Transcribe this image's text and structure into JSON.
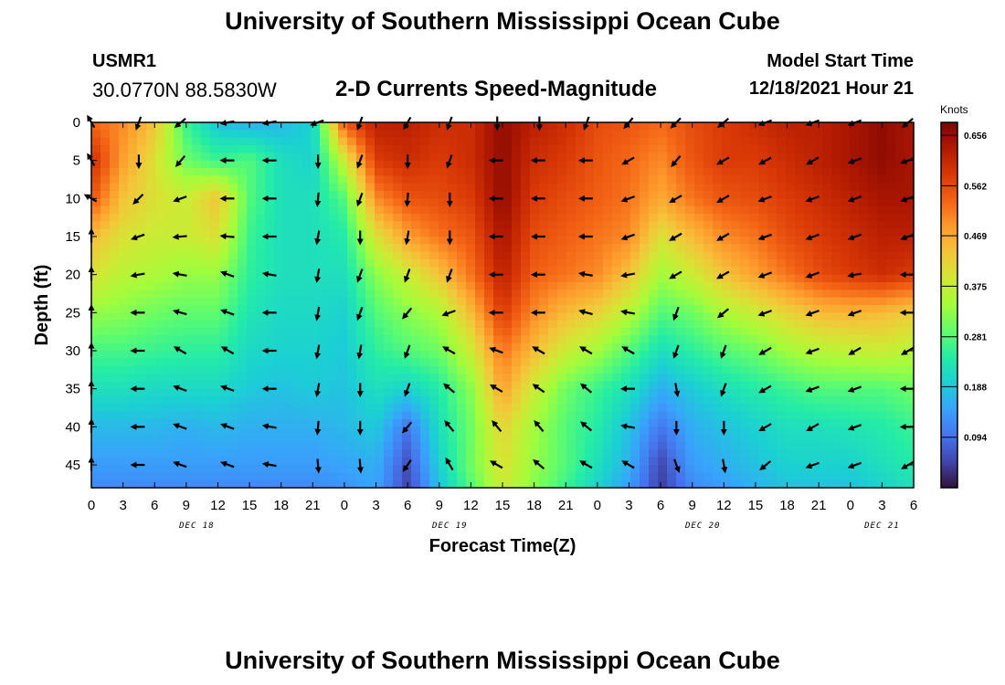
{
  "header": {
    "title": "University of Southern Mississippi Ocean Cube",
    "station_id": "USMR1",
    "station_coords": "30.0770N  88.5830W",
    "plot_title": "2-D Currents Speed-Magnitude",
    "model_start_label": "Model Start Time",
    "model_start_value": "12/18/2021 Hour 21"
  },
  "footer": {
    "title": "University of Southern Mississippi Ocean Cube"
  },
  "chart_data": {
    "type": "heatmap",
    "title": "2-D Currents Speed-Magnitude",
    "xlabel": "Forecast Time(Z)",
    "ylabel": "Depth (ft)",
    "x_range_hours": [
      0,
      78
    ],
    "y_range_ft": [
      0,
      48
    ],
    "x_tick_labels": [
      "0",
      "3",
      "6",
      "9",
      "12",
      "15",
      "18",
      "21",
      "0",
      "3",
      "6",
      "9",
      "12",
      "15",
      "18",
      "21",
      "0",
      "3",
      "6",
      "9",
      "12",
      "15",
      "18",
      "21",
      "0",
      "3",
      "6"
    ],
    "x_tick_hours": [
      0,
      3,
      6,
      9,
      12,
      15,
      18,
      21,
      24,
      27,
      30,
      33,
      36,
      39,
      42,
      45,
      48,
      51,
      54,
      57,
      60,
      63,
      66,
      69,
      72,
      75,
      78
    ],
    "y_tick_labels": [
      "0",
      "5",
      "10",
      "15",
      "20",
      "25",
      "30",
      "35",
      "40",
      "45"
    ],
    "y_tick_values": [
      0,
      5,
      10,
      15,
      20,
      25,
      30,
      35,
      40,
      45
    ],
    "day_labels": [
      {
        "label": "DEC 18",
        "hour": 10
      },
      {
        "label": "DEC 19",
        "hour": 34
      },
      {
        "label": "DEC 20",
        "hour": 58
      },
      {
        "label": "DEC 21",
        "hour": 75
      }
    ],
    "colorbar": {
      "unit": "Knots",
      "min": 0.0,
      "max": 0.68,
      "ticks": [
        0.656,
        0.562,
        0.469,
        0.375,
        0.281,
        0.188,
        0.094
      ],
      "tick_labels": [
        "0.656",
        "0.562",
        "0.469",
        "0.375",
        "0.281",
        "0.188",
        "0.094"
      ],
      "colors": [
        "#30123b",
        "#4145ab",
        "#4675ed",
        "#39a2fc",
        "#1bcfd4",
        "#24eca6",
        "#61fc6c",
        "#a4fc3b",
        "#d1e834",
        "#f3c63a",
        "#fe9b2d",
        "#f36315",
        "#d93806",
        "#b11901",
        "#7a0403"
      ]
    },
    "depth_levels_ft": [
      0,
      5,
      10,
      15,
      20,
      25,
      30,
      35,
      40,
      45,
      48
    ],
    "time_hours": [
      0,
      3,
      6,
      9,
      12,
      15,
      18,
      21,
      24,
      27,
      30,
      33,
      36,
      39,
      42,
      45,
      48,
      51,
      54,
      57,
      60,
      63,
      66,
      69,
      72,
      75,
      78
    ],
    "speed_knots": [
      [
        0.53,
        0.5,
        0.44,
        0.26,
        0.18,
        0.16,
        0.17,
        0.2,
        0.55,
        0.62,
        0.62,
        0.6,
        0.6,
        0.66,
        0.62,
        0.6,
        0.56,
        0.55,
        0.53,
        0.56,
        0.58,
        0.6,
        0.62,
        0.62,
        0.64,
        0.66,
        0.64
      ],
      [
        0.6,
        0.48,
        0.4,
        0.3,
        0.26,
        0.28,
        0.22,
        0.2,
        0.38,
        0.58,
        0.6,
        0.58,
        0.6,
        0.66,
        0.6,
        0.58,
        0.55,
        0.53,
        0.5,
        0.55,
        0.58,
        0.58,
        0.6,
        0.62,
        0.64,
        0.66,
        0.64
      ],
      [
        0.55,
        0.44,
        0.4,
        0.38,
        0.44,
        0.28,
        0.22,
        0.22,
        0.28,
        0.5,
        0.55,
        0.56,
        0.58,
        0.66,
        0.58,
        0.56,
        0.54,
        0.52,
        0.47,
        0.52,
        0.55,
        0.56,
        0.58,
        0.6,
        0.62,
        0.64,
        0.64
      ],
      [
        0.45,
        0.4,
        0.38,
        0.38,
        0.4,
        0.26,
        0.22,
        0.22,
        0.24,
        0.4,
        0.48,
        0.52,
        0.55,
        0.64,
        0.56,
        0.54,
        0.52,
        0.5,
        0.4,
        0.45,
        0.5,
        0.52,
        0.56,
        0.58,
        0.6,
        0.62,
        0.62
      ],
      [
        0.4,
        0.36,
        0.35,
        0.33,
        0.33,
        0.25,
        0.22,
        0.22,
        0.22,
        0.32,
        0.38,
        0.44,
        0.52,
        0.62,
        0.54,
        0.52,
        0.5,
        0.44,
        0.34,
        0.38,
        0.44,
        0.48,
        0.52,
        0.56,
        0.58,
        0.6,
        0.58
      ],
      [
        0.33,
        0.32,
        0.3,
        0.29,
        0.29,
        0.23,
        0.21,
        0.21,
        0.2,
        0.28,
        0.32,
        0.35,
        0.45,
        0.58,
        0.5,
        0.45,
        0.42,
        0.36,
        0.28,
        0.3,
        0.35,
        0.38,
        0.42,
        0.45,
        0.46,
        0.45,
        0.43
      ],
      [
        0.27,
        0.27,
        0.26,
        0.25,
        0.25,
        0.21,
        0.2,
        0.2,
        0.19,
        0.25,
        0.28,
        0.3,
        0.38,
        0.52,
        0.45,
        0.38,
        0.34,
        0.28,
        0.22,
        0.25,
        0.28,
        0.3,
        0.34,
        0.36,
        0.37,
        0.38,
        0.36
      ],
      [
        0.22,
        0.22,
        0.21,
        0.21,
        0.21,
        0.19,
        0.18,
        0.19,
        0.18,
        0.22,
        0.2,
        0.24,
        0.32,
        0.48,
        0.38,
        0.3,
        0.26,
        0.22,
        0.16,
        0.19,
        0.22,
        0.24,
        0.26,
        0.28,
        0.28,
        0.28,
        0.3
      ],
      [
        0.17,
        0.17,
        0.17,
        0.16,
        0.17,
        0.16,
        0.16,
        0.16,
        0.17,
        0.19,
        0.1,
        0.22,
        0.3,
        0.42,
        0.34,
        0.28,
        0.24,
        0.18,
        0.1,
        0.16,
        0.18,
        0.2,
        0.22,
        0.22,
        0.23,
        0.24,
        0.26
      ],
      [
        0.14,
        0.14,
        0.14,
        0.14,
        0.14,
        0.14,
        0.14,
        0.14,
        0.15,
        0.16,
        0.06,
        0.2,
        0.3,
        0.4,
        0.33,
        0.28,
        0.22,
        0.16,
        0.05,
        0.14,
        0.16,
        0.18,
        0.2,
        0.2,
        0.2,
        0.22,
        0.24
      ],
      [
        0.12,
        0.12,
        0.12,
        0.12,
        0.12,
        0.12,
        0.12,
        0.12,
        0.13,
        0.15,
        0.05,
        0.18,
        0.28,
        0.38,
        0.32,
        0.26,
        0.2,
        0.14,
        0.04,
        0.12,
        0.14,
        0.16,
        0.18,
        0.18,
        0.18,
        0.2,
        0.22
      ]
    ],
    "vector_depths_ft": [
      0,
      5,
      10,
      15,
      20,
      25,
      30,
      35,
      40,
      45
    ],
    "vector_times_hours": [
      0,
      4.5,
      8.5,
      13,
      17,
      21.5,
      25.5,
      30,
      34,
      38.5,
      42.5,
      47,
      51,
      55.5,
      60,
      64,
      68.5,
      72.5,
      77.5
    ],
    "vector_directions_deg": [
      [
        330,
        200,
        230,
        260,
        260,
        250,
        200,
        210,
        200,
        180,
        180,
        200,
        220,
        225,
        230,
        250,
        250,
        250,
        230
      ],
      [
        330,
        180,
        220,
        270,
        270,
        180,
        200,
        180,
        200,
        270,
        270,
        270,
        240,
        220,
        240,
        240,
        240,
        250,
        250
      ],
      [
        300,
        225,
        250,
        270,
        270,
        185,
        200,
        185,
        180,
        270,
        270,
        270,
        250,
        240,
        240,
        250,
        250,
        250,
        250
      ],
      [
        0,
        250,
        265,
        275,
        270,
        190,
        180,
        190,
        180,
        270,
        270,
        270,
        250,
        240,
        240,
        250,
        250,
        250,
        250
      ],
      [
        0,
        260,
        280,
        290,
        280,
        190,
        200,
        200,
        200,
        270,
        270,
        280,
        260,
        240,
        240,
        250,
        250,
        260,
        270
      ],
      [
        0,
        270,
        285,
        290,
        270,
        190,
        200,
        220,
        250,
        270,
        270,
        285,
        280,
        200,
        230,
        250,
        250,
        250,
        270
      ],
      [
        0,
        270,
        300,
        300,
        270,
        190,
        190,
        200,
        300,
        290,
        300,
        300,
        300,
        200,
        200,
        240,
        250,
        240,
        240
      ],
      [
        0,
        270,
        290,
        290,
        270,
        190,
        180,
        200,
        310,
        300,
        305,
        310,
        270,
        170,
        200,
        240,
        250,
        250,
        270
      ],
      [
        0,
        270,
        290,
        290,
        280,
        185,
        180,
        220,
        320,
        320,
        320,
        310,
        280,
        180,
        180,
        240,
        240,
        250,
        270
      ],
      [
        0,
        270,
        290,
        290,
        280,
        175,
        175,
        215,
        330,
        300,
        310,
        300,
        300,
        160,
        170,
        230,
        250,
        250,
        240
      ]
    ]
  }
}
